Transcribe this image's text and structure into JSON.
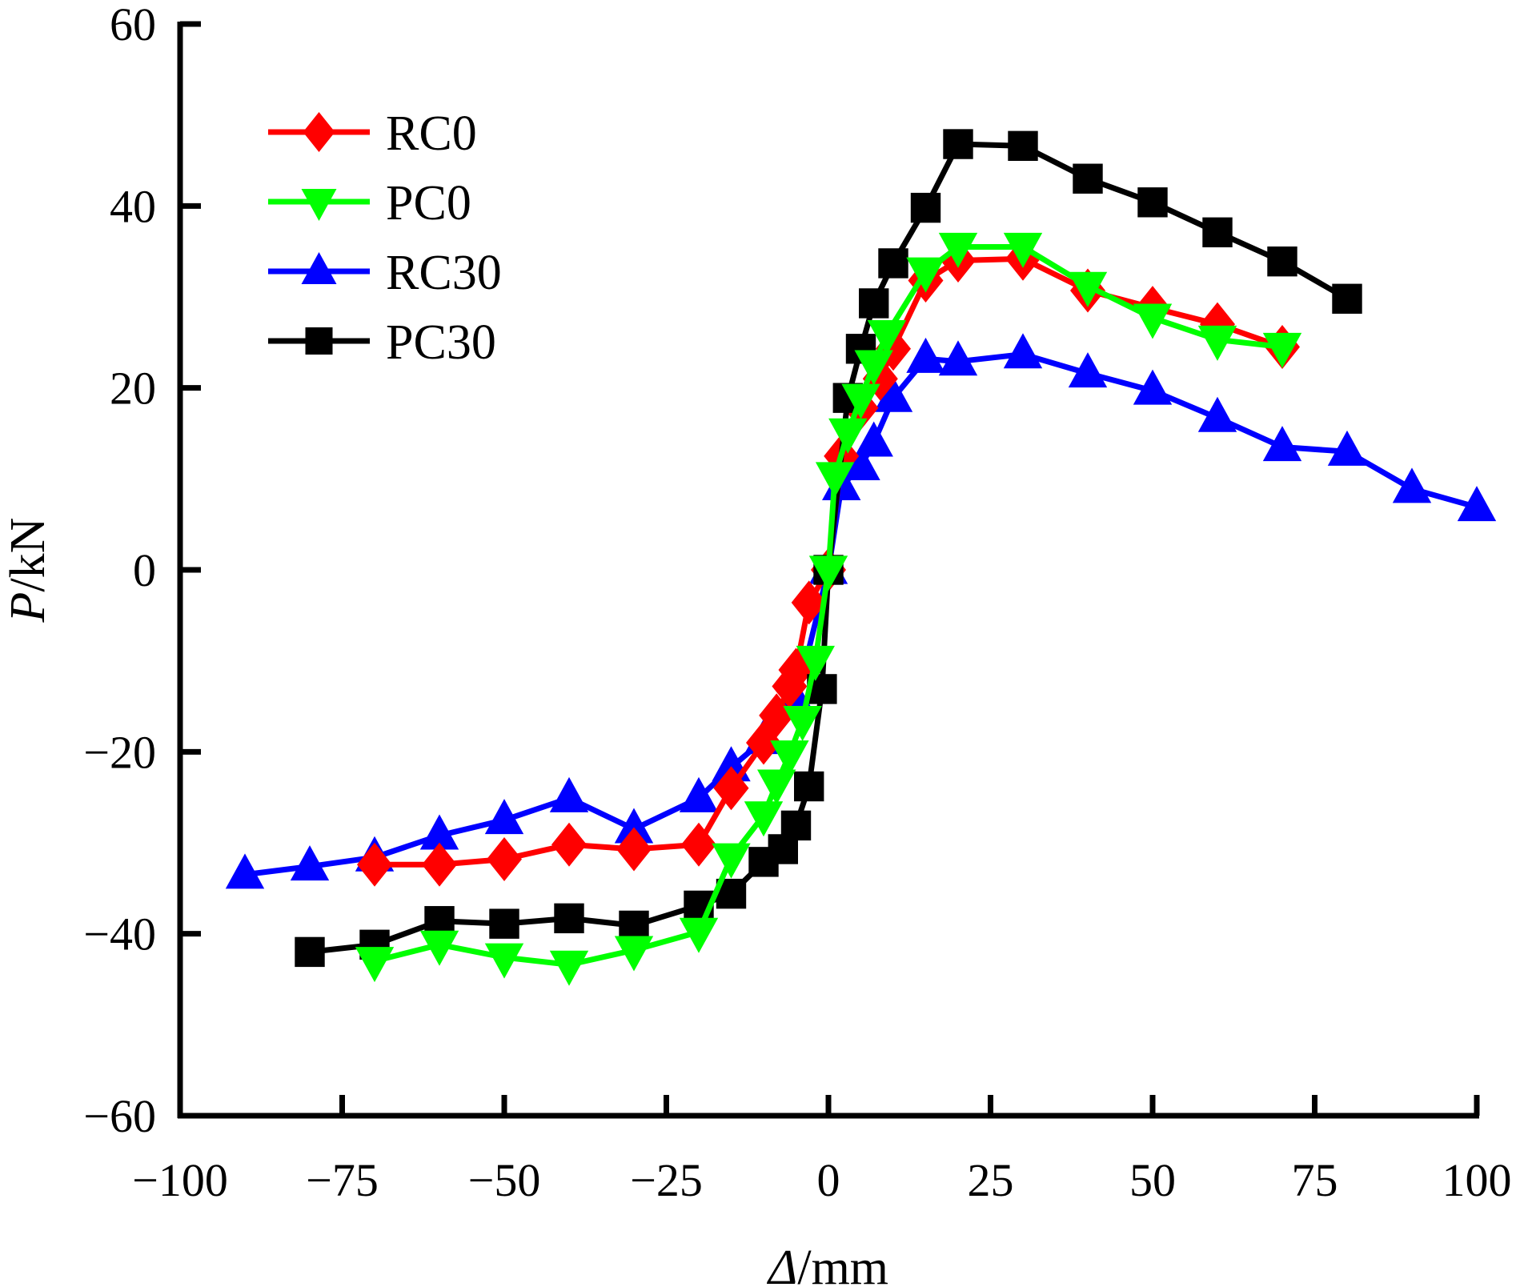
{
  "chart_data": {
    "type": "line",
    "title": "",
    "xlabel": "Δ/mm",
    "xlabel_italic_part": "Δ",
    "xlabel_rest": "/mm",
    "ylabel": "P/kN",
    "ylabel_italic_part": "P",
    "ylabel_rest": "/kN",
    "xlim": [
      -100,
      100
    ],
    "ylim": [
      -60,
      60
    ],
    "xticks": [
      -100,
      -75,
      -50,
      -25,
      0,
      25,
      50,
      75,
      100
    ],
    "xtick_labels": [
      "−100",
      "−75",
      "−50",
      "−25",
      "0",
      "25",
      "50",
      "75",
      "100"
    ],
    "yticks": [
      -60,
      -40,
      -20,
      0,
      20,
      40,
      60
    ],
    "ytick_labels": [
      "−60",
      "−40",
      "−20",
      "0",
      "20",
      "40",
      "60"
    ],
    "grid": false,
    "legend_position": "top-left",
    "series": [
      {
        "name": "RC0",
        "color": "#ff0000",
        "marker": "diamond",
        "points": [
          [
            -70,
            -32.4
          ],
          [
            -60,
            -32.4
          ],
          [
            -50,
            -31.8
          ],
          [
            -40,
            -30.2
          ],
          [
            -30,
            -30.7
          ],
          [
            -20,
            -30.2
          ],
          [
            -15,
            -24
          ],
          [
            -10,
            -19
          ],
          [
            -8,
            -16
          ],
          [
            -6,
            -12.8
          ],
          [
            -5,
            -11
          ],
          [
            -3,
            -3.6
          ],
          [
            0,
            0
          ],
          [
            2,
            12.5
          ],
          [
            5,
            17.8
          ],
          [
            8,
            21
          ],
          [
            10,
            24.3
          ],
          [
            15,
            31.8
          ],
          [
            20,
            34
          ],
          [
            30,
            34.2
          ],
          [
            40,
            30.7
          ],
          [
            50,
            28.8
          ],
          [
            60,
            27
          ],
          [
            70,
            24.5
          ]
        ]
      },
      {
        "name": "PC0",
        "color": "#00ff00",
        "marker": "triangle-down",
        "points": [
          [
            -70,
            -43
          ],
          [
            -60,
            -41.2
          ],
          [
            -50,
            -42.6
          ],
          [
            -40,
            -43.4
          ],
          [
            -30,
            -41.8
          ],
          [
            -20,
            -39.8
          ],
          [
            -15,
            -31.6
          ],
          [
            -10,
            -27
          ],
          [
            -8,
            -23.5
          ],
          [
            -6,
            -20.3
          ],
          [
            -4,
            -16.5
          ],
          [
            -2,
            -9.9
          ],
          [
            0,
            0
          ],
          [
            1,
            10.3
          ],
          [
            3,
            15.1
          ],
          [
            5,
            18.9
          ],
          [
            7,
            22.6
          ],
          [
            9,
            25.9
          ],
          [
            15,
            32.8
          ],
          [
            20,
            35.5
          ],
          [
            30,
            35.5
          ],
          [
            40,
            31.2
          ],
          [
            50,
            27.7
          ],
          [
            60,
            25.3
          ],
          [
            70,
            24.5
          ]
        ]
      },
      {
        "name": "RC30",
        "color": "#0000ff",
        "marker": "triangle-up",
        "points": [
          [
            -90,
            -33.5
          ],
          [
            -80,
            -32.6
          ],
          [
            -70,
            -31.6
          ],
          [
            -60,
            -29.2
          ],
          [
            -50,
            -27.5
          ],
          [
            -40,
            -25.1
          ],
          [
            -30,
            -28.5
          ],
          [
            -20,
            -25.1
          ],
          [
            -15,
            -21.7
          ],
          [
            -10,
            -18.7
          ],
          [
            -5,
            -14.4
          ],
          [
            0,
            0
          ],
          [
            2,
            9.2
          ],
          [
            5,
            11.4
          ],
          [
            7,
            14
          ],
          [
            10,
            18.9
          ],
          [
            15,
            23.2
          ],
          [
            20,
            22.9
          ],
          [
            30,
            23.7
          ],
          [
            40,
            21.6
          ],
          [
            50,
            19.7
          ],
          [
            60,
            16.7
          ],
          [
            70,
            13.5
          ],
          [
            80,
            13
          ],
          [
            90,
            8.9
          ],
          [
            100,
            6.9
          ]
        ]
      },
      {
        "name": "PC30",
        "color": "#000000",
        "marker": "square",
        "points": [
          [
            -80,
            -42
          ],
          [
            -70,
            -41.2
          ],
          [
            -60,
            -38.6
          ],
          [
            -50,
            -38.9
          ],
          [
            -40,
            -38.3
          ],
          [
            -30,
            -39.1
          ],
          [
            -20,
            -36.9
          ],
          [
            -15,
            -35.6
          ],
          [
            -10,
            -32.1
          ],
          [
            -7,
            -30.7
          ],
          [
            -5,
            -28.1
          ],
          [
            -3,
            -23.8
          ],
          [
            -1,
            -13.1
          ],
          [
            0,
            0
          ],
          [
            3,
            18.9
          ],
          [
            5,
            24.3
          ],
          [
            7,
            29.3
          ],
          [
            10,
            33.7
          ],
          [
            15,
            39.8
          ],
          [
            20,
            46.8
          ],
          [
            30,
            46.6
          ],
          [
            40,
            43
          ],
          [
            50,
            40.4
          ],
          [
            60,
            37.1
          ],
          [
            70,
            33.9
          ],
          [
            80,
            29.8
          ]
        ]
      }
    ]
  }
}
